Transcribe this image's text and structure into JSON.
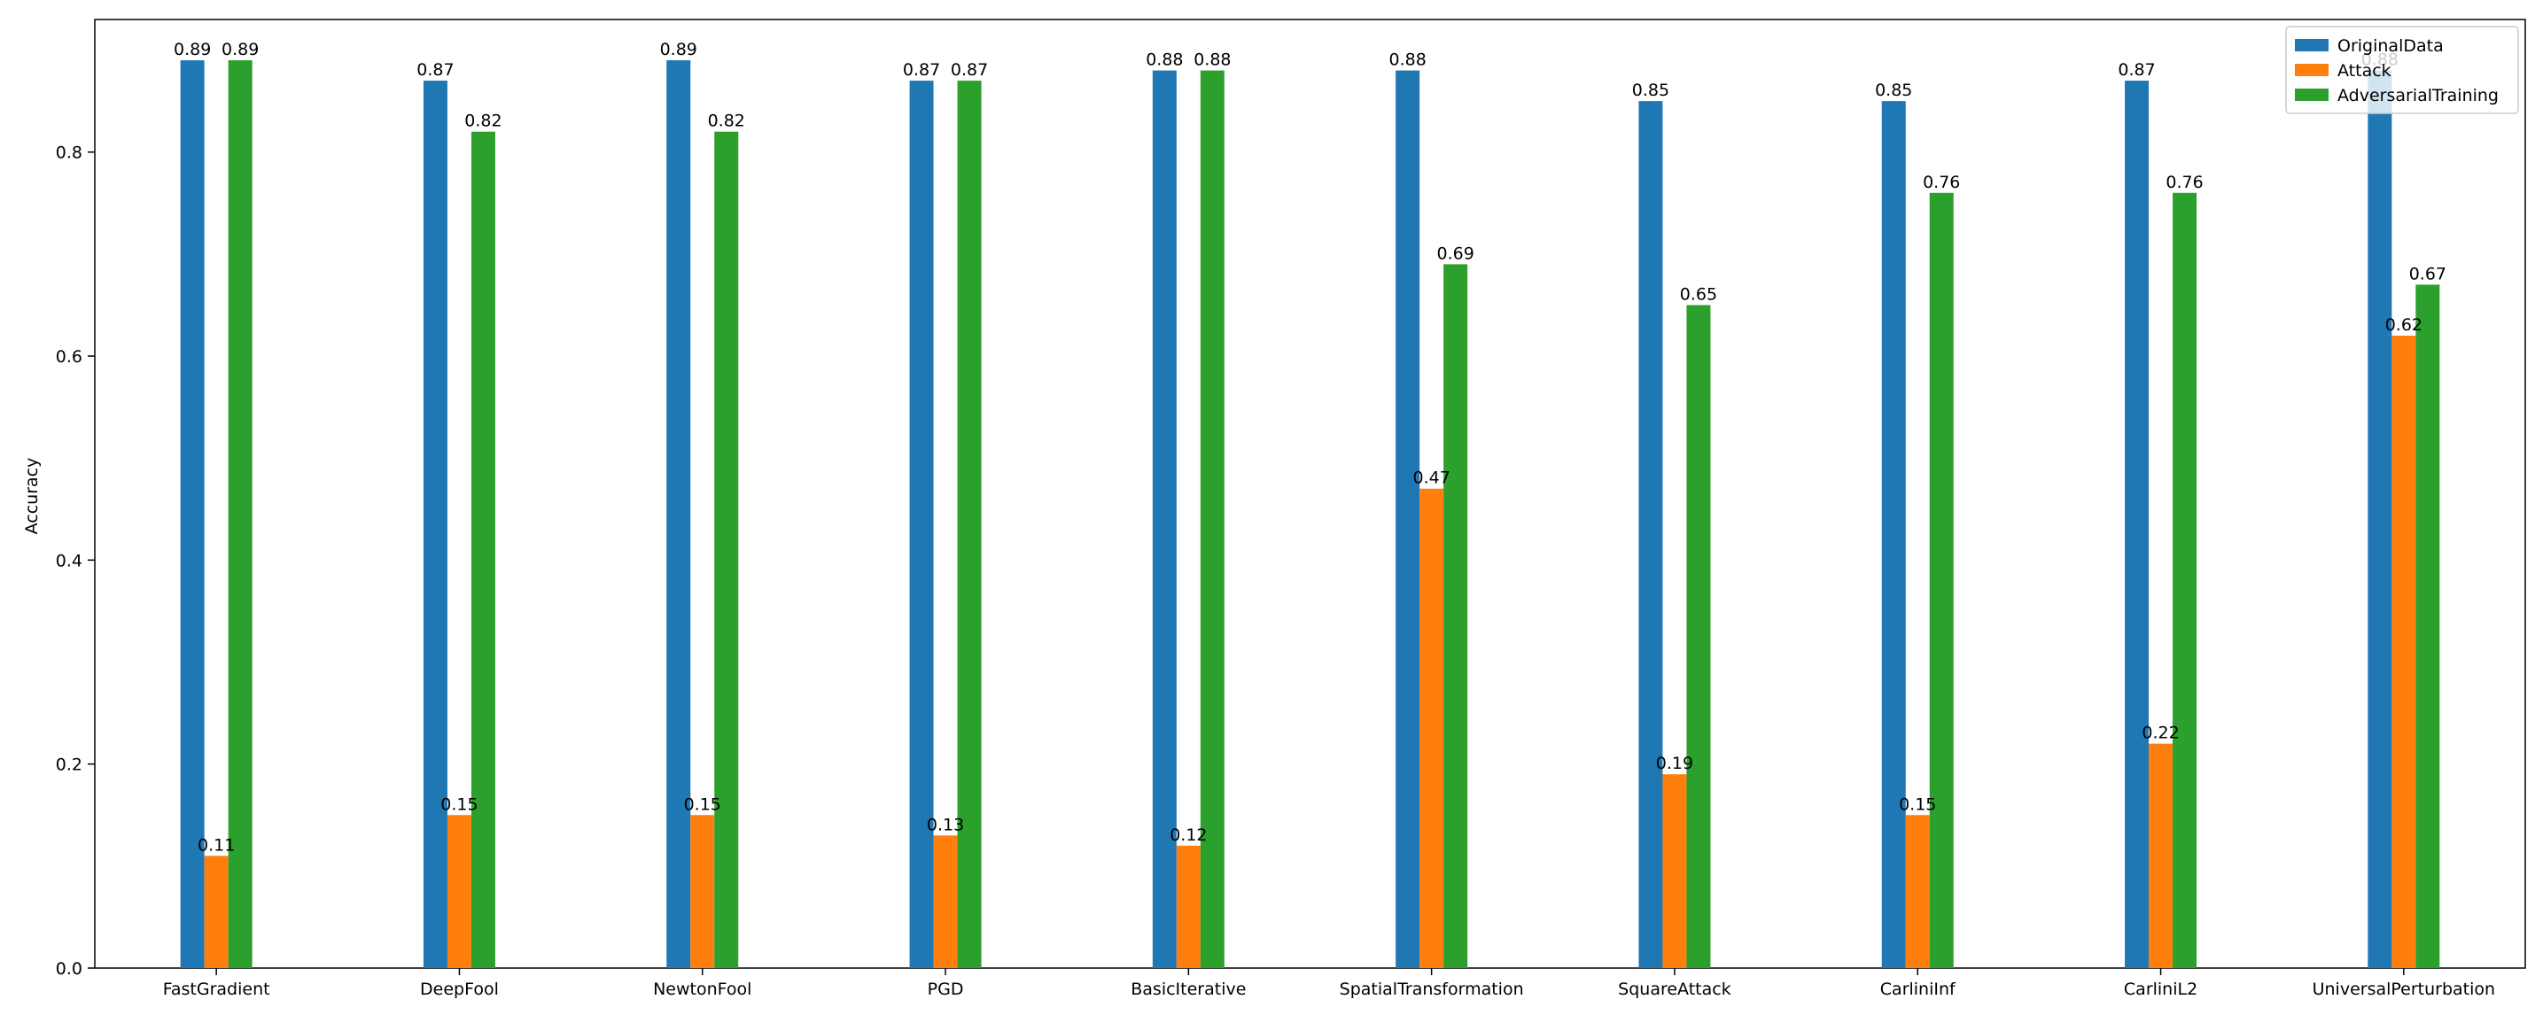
{
  "chart_data": {
    "type": "bar",
    "title": "",
    "xlabel": "",
    "ylabel": "Accuracy",
    "ylim": [
      0,
      0.93
    ],
    "yticks": [
      "0.0",
      "0.2",
      "0.4",
      "0.6",
      "0.8"
    ],
    "categories": [
      "FastGradient",
      "DeepFool",
      "NewtonFool",
      "PGD",
      "BasicIterative",
      "SpatialTransformation",
      "SquareAttack",
      "CarliniInf",
      "CarliniL2",
      "UniversalPerturbation"
    ],
    "series": [
      {
        "name": "OriginalData",
        "color": "#1f77b4",
        "values": [
          0.89,
          0.87,
          0.89,
          0.87,
          0.88,
          0.88,
          0.85,
          0.85,
          0.87,
          0.88
        ],
        "labels": [
          "0.89",
          "0.87",
          "0.89",
          "0.87",
          "0.88",
          "0.88",
          "0.85",
          "0.85",
          "0.87",
          "0.88"
        ]
      },
      {
        "name": "Attack",
        "color": "#ff7f0e",
        "values": [
          0.11,
          0.15,
          0.15,
          0.13,
          0.12,
          0.47,
          0.19,
          0.15,
          0.22,
          0.62
        ],
        "labels": [
          "0.11",
          "0.15",
          "0.15",
          "0.13",
          "0.12",
          "0.47",
          "0.19",
          "0.15",
          "0.22",
          "0.62"
        ]
      },
      {
        "name": "AdversarialTraining",
        "color": "#2ca02c",
        "values": [
          0.89,
          0.82,
          0.82,
          0.87,
          0.88,
          0.69,
          0.65,
          0.76,
          0.76,
          0.67
        ],
        "labels": [
          "0.89",
          "0.82",
          "0.82",
          "0.87",
          "0.88",
          "0.69",
          "0.65",
          "0.76",
          "0.76",
          "0.67"
        ]
      }
    ],
    "legend_position": "top-right",
    "grid": false
  }
}
